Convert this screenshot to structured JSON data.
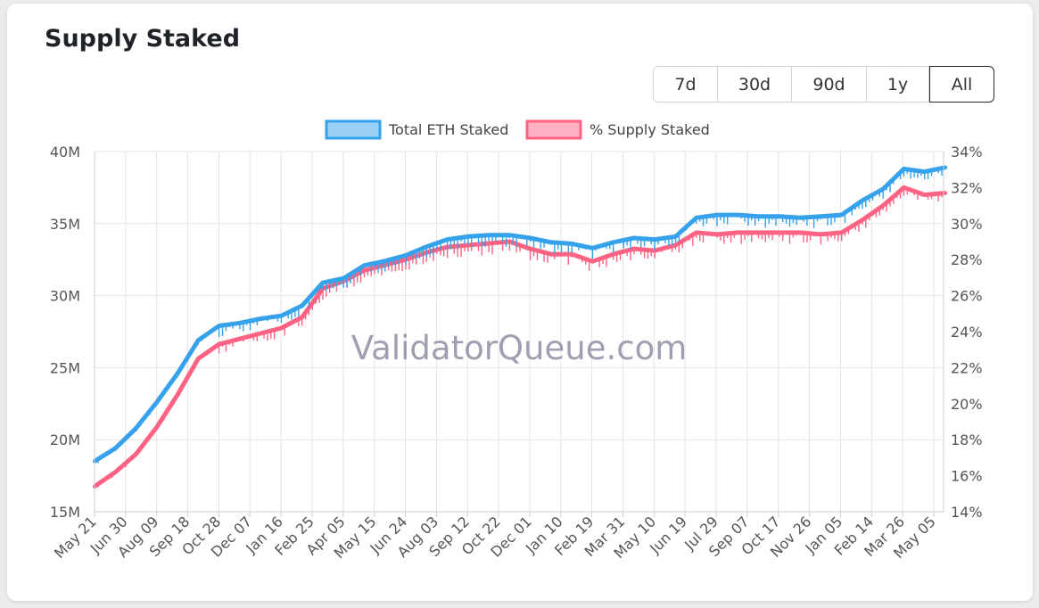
{
  "page": {
    "title": "Supply Staked"
  },
  "range_buttons": [
    {
      "label": "7d",
      "active": false
    },
    {
      "label": "30d",
      "active": false
    },
    {
      "label": "90d",
      "active": false
    },
    {
      "label": "1y",
      "active": false
    },
    {
      "label": "All",
      "active": true
    }
  ],
  "watermark": "ValidatorQueue.com",
  "chart_data": {
    "type": "line",
    "title": "",
    "legend_position": "top",
    "grid": true,
    "x_labels": [
      "May 21",
      "Jun 30",
      "Aug 09",
      "Sep 18",
      "Oct 28",
      "Dec 07",
      "Jan 16",
      "Feb 25",
      "Apr 05",
      "May 15",
      "Jun 24",
      "Aug 03",
      "Sep 12",
      "Oct 22",
      "Dec 01",
      "Jan 10",
      "Feb 19",
      "Mar 31",
      "May 10",
      "Jun 19",
      "Jul 29",
      "Sep 07",
      "Oct 17",
      "Nov 26",
      "Jan 05",
      "Feb 14",
      "Mar 26",
      "May 05"
    ],
    "y_left": {
      "ticks": [
        "15M",
        "20M",
        "25M",
        "30M",
        "35M",
        "40M"
      ],
      "range": [
        15000000,
        40000000
      ]
    },
    "y_right": {
      "ticks": [
        "14%",
        "16%",
        "18%",
        "20%",
        "22%",
        "24%",
        "26%",
        "28%",
        "30%",
        "32%",
        "34%"
      ],
      "range": [
        14,
        34
      ]
    },
    "series": [
      {
        "name": "Total ETH Staked",
        "axis": "left",
        "color": "#36a2eb",
        "fill": "#9ad0f5",
        "values": [
          18.5,
          19.4,
          20.8,
          22.6,
          24.6,
          26.9,
          27.9,
          28.1,
          28.4,
          28.6,
          29.3,
          30.9,
          31.2,
          32.1,
          32.4,
          32.8,
          33.4,
          33.9,
          34.1,
          34.2,
          34.2,
          34.0,
          33.7,
          33.6,
          33.3,
          33.7,
          34.0,
          33.9,
          34.1,
          35.4,
          35.6,
          35.6,
          35.5,
          35.5,
          35.4,
          35.5,
          35.6,
          36.6,
          37.4,
          38.8,
          38.6,
          38.9
        ]
      },
      {
        "name": "% Supply Staked",
        "axis": "right",
        "color": "#ff6384",
        "fill": "#ffb1c1",
        "values": [
          15.4,
          16.2,
          17.2,
          18.7,
          20.5,
          22.5,
          23.3,
          23.6,
          23.9,
          24.2,
          24.8,
          26.4,
          26.8,
          27.4,
          27.7,
          28.0,
          28.4,
          28.7,
          28.8,
          28.9,
          29.0,
          28.6,
          28.3,
          28.3,
          27.9,
          28.3,
          28.6,
          28.5,
          28.8,
          29.5,
          29.4,
          29.5,
          29.5,
          29.5,
          29.5,
          29.4,
          29.5,
          30.2,
          31.0,
          32.0,
          31.6,
          31.7
        ]
      }
    ]
  }
}
